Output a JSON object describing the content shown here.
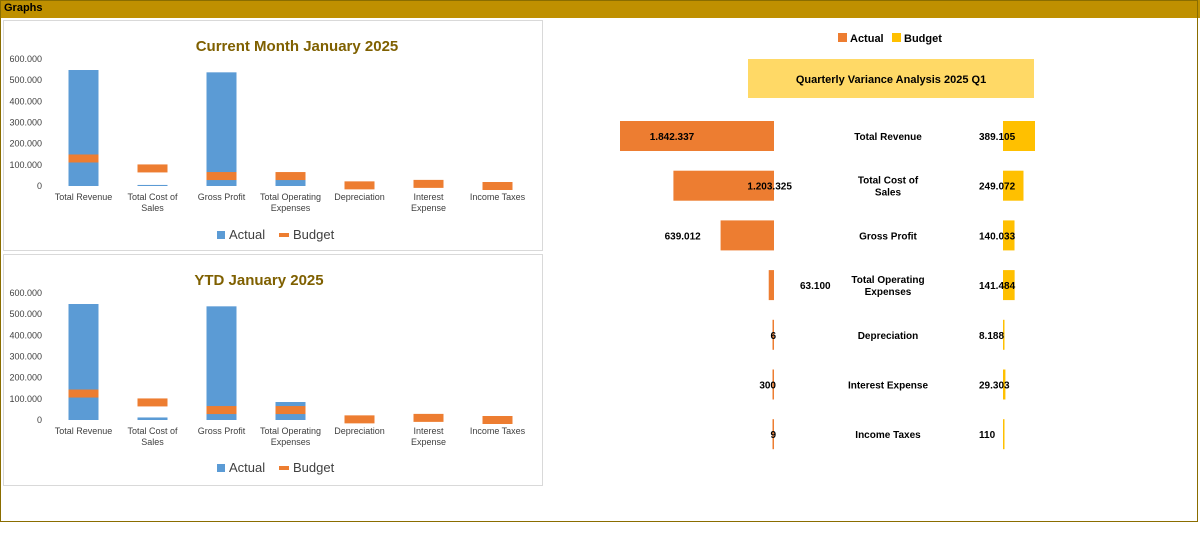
{
  "header": {
    "title": "Graphs"
  },
  "colors": {
    "actual": "#5b9bd5",
    "budget": "#ed7d31",
    "budget_quarter": "#ffc000",
    "title_text": "#7f6000",
    "header_bar": "#bf9000",
    "banner_bg": "#ffd966"
  },
  "chart_data": [
    {
      "type": "bar",
      "title": "Current Month  January 2025",
      "categories": [
        "Total Revenue",
        "Total Cost of Sales",
        "Gross Profit",
        "Total Operating Expenses",
        "Depreciation",
        "Interest Expense",
        "Income Taxes"
      ],
      "series": [
        {
          "name": "Actual",
          "values": [
            548000,
            5000,
            537000,
            30000,
            0,
            0,
            0
          ]
        },
        {
          "name": "Budget",
          "values": [
            130000,
            83000,
            47000,
            47000,
            3000,
            10000,
            0
          ]
        }
      ],
      "yticks": [
        "600.000",
        "500.000",
        "400.000",
        "300.000",
        "200.000",
        "100.000",
        "0"
      ],
      "ylim": [
        0,
        600000
      ],
      "legend": [
        "Actual",
        "Budget"
      ],
      "legend_position": "bottom"
    },
    {
      "type": "bar",
      "title": "YTD  January 2025",
      "categories": [
        "Total Revenue",
        "Total Cost of Sales",
        "Gross Profit",
        "Total Operating Expenses",
        "Depreciation",
        "Interest Expense",
        "Income Taxes"
      ],
      "series": [
        {
          "name": "Actual",
          "values": [
            548000,
            12000,
            537000,
            85000,
            0,
            0,
            0
          ]
        },
        {
          "name": "Budget",
          "values": [
            125000,
            83000,
            47000,
            47000,
            3000,
            10000,
            0
          ]
        }
      ],
      "yticks": [
        "600.000",
        "500.000",
        "400.000",
        "300.000",
        "200.000",
        "100.000",
        "0"
      ],
      "ylim": [
        0,
        600000
      ],
      "legend": [
        "Actual",
        "Budget"
      ],
      "legend_position": "bottom"
    },
    {
      "type": "bar",
      "orientation": "horizontal-butterfly",
      "title": "Quarterly Variance Analysis  2025 Q1",
      "categories": [
        "Total Revenue",
        "Total Cost of Sales",
        "Gross Profit",
        "Total Operating Expenses",
        "Depreciation",
        "Interest Expense",
        "Income Taxes"
      ],
      "series": [
        {
          "name": "Actual",
          "values": [
            1842337,
            1203325,
            639012,
            63100,
            6,
            300,
            9
          ],
          "labels": [
            "1.842.337",
            "1.203.325",
            "639.012",
            "63.100",
            "6",
            "300",
            "9"
          ]
        },
        {
          "name": "Budget",
          "values": [
            389105,
            249072,
            140033,
            141484,
            8188,
            29303,
            110
          ],
          "labels": [
            "389.105",
            "249.072",
            "140.033",
            "141.484",
            "8.188",
            "29.303",
            "110"
          ]
        }
      ],
      "legend": [
        "Actual",
        "Budget"
      ],
      "legend_position": "top"
    }
  ]
}
